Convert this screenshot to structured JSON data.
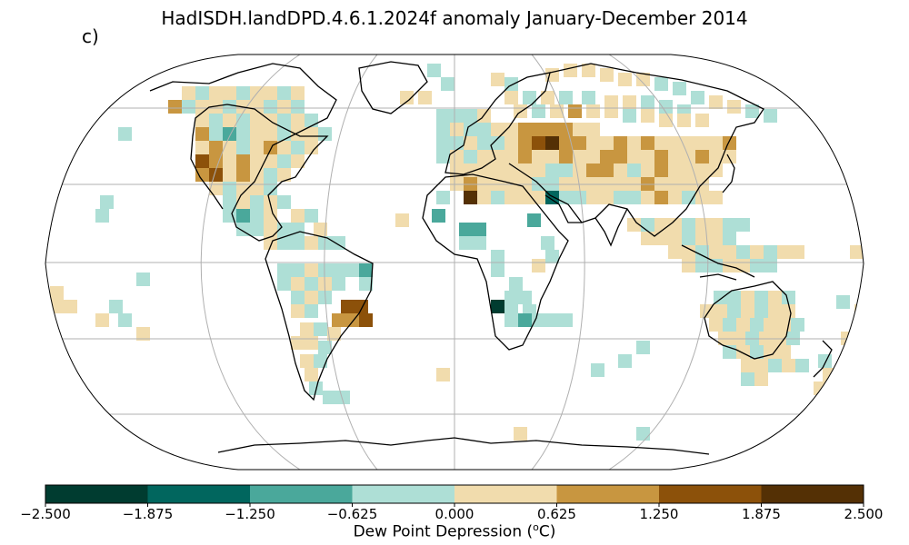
{
  "title": "HadISDH.landDPD.4.6.1.2024f anomaly January-December 2014",
  "panel_label": "c)",
  "colorbar": {
    "label_main": "Dew Point Depression (",
    "label_sup": "o",
    "label_end": "C)",
    "ticks": [
      "−2.500",
      "−1.875",
      "−1.250",
      "−0.625",
      "0.000",
      "0.625",
      "1.250",
      "1.875",
      "2.500"
    ],
    "colors": [
      "#003c30",
      "#01665e",
      "#4aa89b",
      "#aedfd6",
      "#f1dcad",
      "#c89640",
      "#8c510a",
      "#543005"
    ]
  },
  "map": {
    "projection": "Robinson",
    "graticule": true,
    "land_outline_color": "#000000"
  }
}
